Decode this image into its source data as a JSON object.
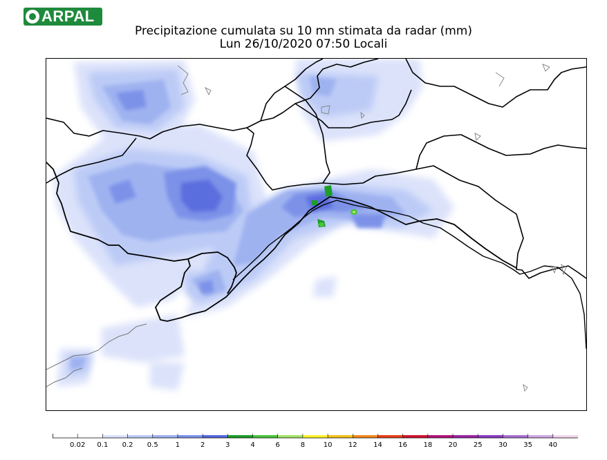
{
  "header": {
    "logo_text": "ARPAL",
    "title_line1": "Precipitazione cumulata su 10 mn stimata da radar (mm)",
    "title_line2": "Lun 26/10/2020 07:50 Locali"
  },
  "legend": {
    "classes": [
      {
        "label": "0.02",
        "color": "#ffffff"
      },
      {
        "label": "0.1",
        "color": "#dbe2fa"
      },
      {
        "label": "0.2",
        "color": "#bccbf6"
      },
      {
        "label": "0.5",
        "color": "#9fb2f0"
      },
      {
        "label": "1",
        "color": "#7b92e8"
      },
      {
        "label": "2",
        "color": "#5768dc"
      },
      {
        "label": "3",
        "color": "#1c9e2a"
      },
      {
        "label": "4",
        "color": "#4cc43c"
      },
      {
        "label": "6",
        "color": "#a4e36a"
      },
      {
        "label": "8",
        "color": "#fff22e"
      },
      {
        "label": "10",
        "color": "#f4c11c"
      },
      {
        "label": "12",
        "color": "#f08a1e"
      },
      {
        "label": "14",
        "color": "#e8401c"
      },
      {
        "label": "16",
        "color": "#d01430"
      },
      {
        "label": "18",
        "color": "#b0167a"
      },
      {
        "label": "20",
        "color": "#9a24a6"
      },
      {
        "label": "25",
        "color": "#8b3cc0"
      },
      {
        "label": "30",
        "color": "#a870d2"
      },
      {
        "label": "35",
        "color": "#cfa8e2"
      },
      {
        "label": "40",
        "color": "#f2d6ec"
      }
    ]
  }
}
